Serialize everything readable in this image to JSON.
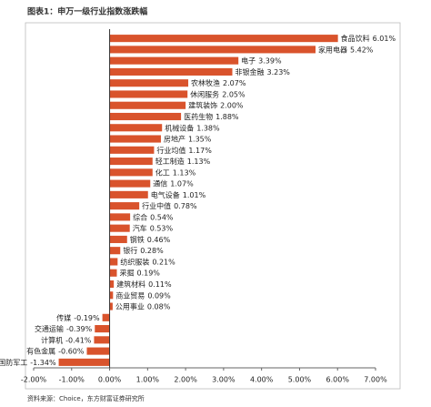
{
  "chart_data": {
    "type": "bar",
    "orientation": "horizontal",
    "title": "图表1：申万一级行业指数涨跌幅",
    "source": "资料来源：Choice，东方财富证券研究所",
    "categories": [
      "食品饮料",
      "家用电器",
      "电子",
      "非银金融",
      "农林牧渔",
      "休闲服务",
      "建筑装饰",
      "医药生物",
      "机械设备",
      "房地产",
      "行业均值",
      "轻工制造",
      "化工",
      "通信",
      "电气设备",
      "行业中值",
      "综合",
      "汽车",
      "钢铁",
      "银行",
      "纺织服装",
      "采掘",
      "建筑材料",
      "商业贸易",
      "公用事业",
      "传媒",
      "交通运输",
      "计算机",
      "有色金属",
      "国防军工"
    ],
    "values": [
      6.01,
      5.42,
      3.39,
      3.23,
      2.07,
      2.05,
      2.0,
      1.88,
      1.38,
      1.35,
      1.17,
      1.13,
      1.13,
      1.07,
      1.01,
      0.78,
      0.54,
      0.53,
      0.46,
      0.28,
      0.21,
      0.19,
      0.11,
      0.09,
      0.08,
      -0.19,
      -0.39,
      -0.41,
      -0.6,
      -1.34
    ],
    "value_labels": [
      "6.01%",
      "5.42%",
      "3.39%",
      "3.23%",
      "2.07%",
      "2.05%",
      "2.00%",
      "1.88%",
      "1.38%",
      "1.35%",
      "1.17%",
      "1.13%",
      "1.13%",
      "1.07%",
      "1.01%",
      "0.78%",
      "0.54%",
      "0.53%",
      "0.46%",
      "0.28%",
      "0.21%",
      "0.19%",
      "0.11%",
      "0.09%",
      "0.08%",
      "-0.19%",
      "-0.39%",
      "-0.41%",
      "-0.60%",
      "-1.34%"
    ],
    "color": "#d9532c",
    "xlim": [
      -2,
      7
    ],
    "xticks": [
      {
        "value": -2,
        "label": "-2.00%"
      },
      {
        "value": -1,
        "label": "-1.00%"
      },
      {
        "value": 0,
        "label": "0.00%"
      },
      {
        "value": 1,
        "label": "1.00%"
      },
      {
        "value": 2,
        "label": "2.00%"
      },
      {
        "value": 3,
        "label": "3.00%"
      },
      {
        "value": 4,
        "label": "4.00%"
      },
      {
        "value": 5,
        "label": "5.00%"
      },
      {
        "value": 6,
        "label": "6.00%"
      },
      {
        "value": 7,
        "label": "7.00%"
      }
    ]
  }
}
